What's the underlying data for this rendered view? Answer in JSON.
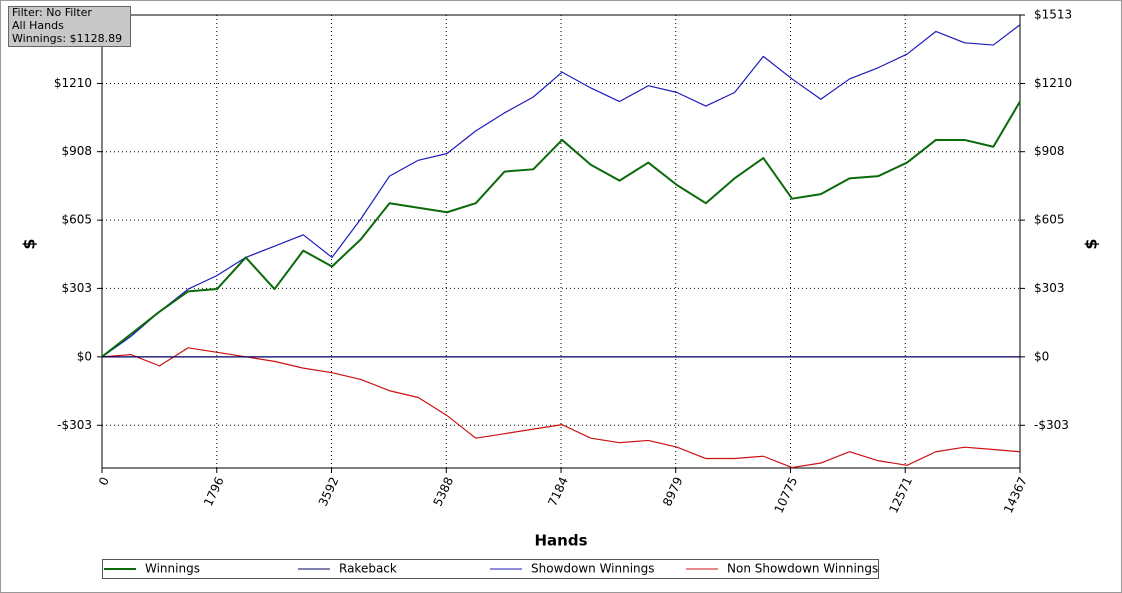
{
  "chart_data": {
    "type": "line",
    "annotations": [
      "Filter: No Filter",
      "All Hands",
      "Winnings: $1128.89"
    ],
    "xlabel": "Hands",
    "ylabel": "$",
    "y2label": "$",
    "xlim": [
      0,
      14367
    ],
    "xticks": [
      0,
      1796,
      3592,
      5388,
      7184,
      8979,
      10775,
      12571,
      14367
    ],
    "ylim": [
      -492,
      1513
    ],
    "yticks": [
      {
        "value": -303,
        "label": "-$303"
      },
      {
        "value": 0,
        "label": "$0"
      },
      {
        "value": 303,
        "label": "$303"
      },
      {
        "value": 605,
        "label": "$605"
      },
      {
        "value": 908,
        "label": "$908"
      },
      {
        "value": 1210,
        "label": "$1210"
      },
      {
        "value": 1513,
        "label": "$1513"
      }
    ],
    "grid": true,
    "series": [
      {
        "name": "Winnings",
        "color": "#0a6a0a",
        "x": [
          0,
          450,
          900,
          1350,
          1800,
          2250,
          2700,
          3150,
          3600,
          4050,
          4500,
          4950,
          5400,
          5850,
          6300,
          6750,
          7200,
          7650,
          8100,
          8550,
          9000,
          9450,
          9900,
          10350,
          10800,
          11250,
          11700,
          12150,
          12600,
          13050,
          13500,
          13950,
          14367
        ],
        "values": [
          0,
          100,
          200,
          290,
          300,
          440,
          300,
          470,
          400,
          520,
          680,
          660,
          640,
          680,
          820,
          830,
          960,
          850,
          780,
          860,
          760,
          680,
          790,
          880,
          700,
          720,
          790,
          800,
          860,
          960,
          960,
          930,
          1130
        ]
      },
      {
        "name": "Rakeback",
        "color": "#000060",
        "x": [
          0,
          14367
        ],
        "values": [
          0,
          0
        ]
      },
      {
        "name": "Showdown Winnings",
        "color": "#1c1cbb",
        "x": [
          0,
          450,
          900,
          1350,
          1800,
          2250,
          2700,
          3150,
          3600,
          4050,
          4500,
          4950,
          5400,
          5850,
          6300,
          6750,
          7200,
          7650,
          8100,
          8550,
          9000,
          9450,
          9900,
          10350,
          10800,
          11250,
          11700,
          12150,
          12600,
          13050,
          13500,
          13950,
          14367
        ],
        "values": [
          0,
          90,
          200,
          300,
          360,
          440,
          490,
          540,
          440,
          610,
          800,
          870,
          900,
          1000,
          1080,
          1150,
          1260,
          1190,
          1130,
          1200,
          1170,
          1110,
          1170,
          1330,
          1230,
          1140,
          1230,
          1280,
          1340,
          1440,
          1390,
          1380,
          1470
        ]
      },
      {
        "name": "Non Showdown Winnings",
        "color": "#cc1111",
        "x": [
          0,
          450,
          900,
          1350,
          1800,
          2250,
          2700,
          3150,
          3600,
          4050,
          4500,
          4950,
          5400,
          5850,
          6300,
          6750,
          7200,
          7650,
          8100,
          8550,
          9000,
          9450,
          9900,
          10350,
          10800,
          11250,
          11700,
          12150,
          12600,
          13050,
          13500,
          13950,
          14367
        ],
        "values": [
          0,
          10,
          -40,
          40,
          20,
          0,
          -20,
          -50,
          -70,
          -100,
          -150,
          -180,
          -260,
          -360,
          -340,
          -320,
          -300,
          -360,
          -380,
          -370,
          -400,
          -450,
          -450,
          -440,
          -490,
          -470,
          -420,
          -460,
          -480,
          -420,
          -400,
          -410,
          -420
        ]
      }
    ]
  }
}
